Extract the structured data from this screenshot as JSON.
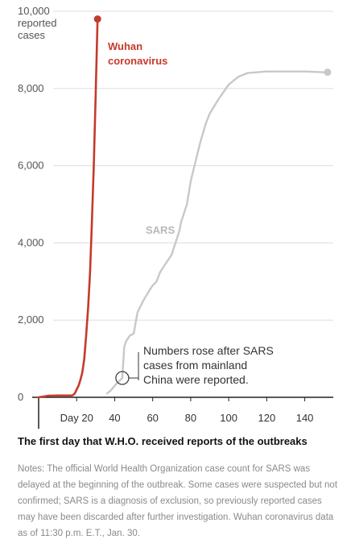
{
  "chart_data": {
    "type": "line",
    "ylim": [
      0,
      10000
    ],
    "xlim": [
      0,
      155
    ],
    "y_ticks": [
      0,
      2000,
      4000,
      6000,
      8000,
      10000
    ],
    "y_tick_labels": [
      "0",
      "2,000",
      "4,000",
      "6,000",
      "8,000",
      "10,000"
    ],
    "y_unit_label": [
      "reported",
      "cases"
    ],
    "x_ticks": [
      20,
      40,
      60,
      80,
      100,
      120,
      140
    ],
    "x_tick_labels": [
      "Day 20",
      "40",
      "60",
      "80",
      "100",
      "120",
      "140"
    ],
    "grid": "horizontal",
    "series": [
      {
        "name": "Wuhan coronavirus",
        "label_lines": [
          "Wuhan",
          "coronavirus"
        ],
        "color": "#c53a2b",
        "x": [
          0,
          5,
          10,
          15,
          17,
          18,
          19,
          20,
          21,
          22,
          23,
          24,
          25,
          26,
          27,
          28,
          29,
          30,
          31
        ],
        "y": [
          0,
          40,
          45,
          45,
          45,
          55,
          100,
          200,
          300,
          450,
          650,
          1000,
          1600,
          2300,
          3200,
          4500,
          6000,
          7800,
          9800
        ]
      },
      {
        "name": "SARS",
        "label_lines": [
          "SARS"
        ],
        "color": "#c8c8c8",
        "x": [
          36,
          38,
          40,
          42,
          44,
          45,
          46,
          48,
          50,
          52,
          53,
          55,
          58,
          60,
          62,
          64,
          66,
          68,
          70,
          72,
          74,
          75,
          78,
          80,
          82,
          85,
          88,
          90,
          95,
          100,
          105,
          110,
          120,
          125,
          130,
          140,
          150,
          152
        ],
        "y": [
          100,
          180,
          300,
          400,
          500,
          1300,
          1450,
          1600,
          1650,
          2200,
          2300,
          2500,
          2750,
          2900,
          3000,
          3250,
          3400,
          3550,
          3700,
          4000,
          4300,
          4550,
          5000,
          5600,
          6000,
          6600,
          7100,
          7350,
          7750,
          8100,
          8300,
          8400,
          8440,
          8440,
          8440,
          8440,
          8420,
          8420
        ]
      }
    ],
    "annotation": {
      "lines": [
        "Numbers rose after SARS",
        "cases from mainland",
        "China were reported."
      ],
      "target": {
        "x": 44,
        "y": 500
      }
    },
    "day_one_caption": "The first day that W.H.O. received reports of the outbreaks"
  },
  "notes": "Notes: The official World Health Organization case count for SARS was delayed at the beginning of the outbreak. Some cases were suspected but not confirmed; SARS is a diagnosis of exclusion, so previously reported cases may have been discarded after further investigation. Wuhan coronavirus data as of 11:30 p.m. E.T., Jan. 30."
}
